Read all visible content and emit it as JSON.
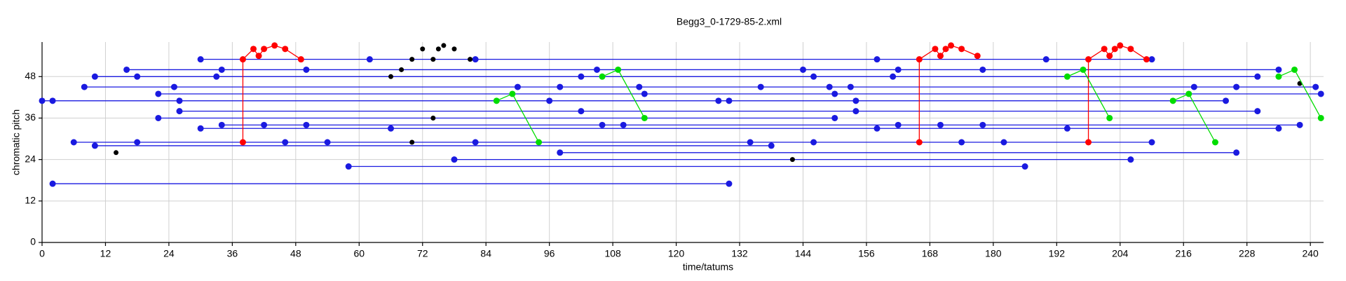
{
  "chart_data": {
    "type": "line",
    "title": "Begg3_0-1729-85-2.xml",
    "x_label": "time/tatums",
    "y_label": "chromatic pitch",
    "xlim": [
      0,
      242.5
    ],
    "ylim": [
      0,
      58
    ],
    "xticks": [
      0,
      12,
      24,
      36,
      48,
      60,
      72,
      84,
      96,
      108,
      120,
      132,
      144,
      156,
      168,
      180,
      192,
      204,
      216,
      228,
      240
    ],
    "yticks": [
      0,
      12,
      24,
      36,
      48
    ],
    "grid": true,
    "series": [
      {
        "color": "#1a1ae0",
        "x": [
          30,
          62,
          82,
          158,
          190,
          210
        ],
        "values": [
          53,
          53,
          53,
          53,
          53,
          53
        ]
      },
      {
        "color": "#1a1ae0",
        "x": [
          16,
          34,
          50,
          105,
          144,
          162,
          178,
          234
        ],
        "values": [
          50,
          50,
          50,
          50,
          50,
          50,
          50,
          50
        ]
      },
      {
        "color": "#1a1ae0",
        "x": [
          10,
          18,
          33,
          102,
          146,
          161,
          230
        ],
        "values": [
          48,
          48,
          48,
          48,
          48,
          48,
          48
        ]
      },
      {
        "color": "#1a1ae0",
        "x": [
          8,
          25,
          90,
          98,
          113,
          136,
          149,
          153,
          218,
          226,
          241
        ],
        "values": [
          45,
          45,
          45,
          45,
          45,
          45,
          45,
          45,
          45,
          45,
          45
        ]
      },
      {
        "color": "#1a1ae0",
        "x": [
          22,
          114,
          150,
          242
        ],
        "values": [
          43,
          43,
          43,
          43
        ]
      },
      {
        "color": "#1a1ae0",
        "x": [
          0,
          2,
          26,
          96,
          128,
          130,
          154,
          224
        ],
        "values": [
          41,
          41,
          41,
          41,
          41,
          41,
          41,
          41
        ]
      },
      {
        "color": "#1a1ae0",
        "x": [
          26,
          102,
          154,
          230
        ],
        "values": [
          38,
          38,
          38,
          38
        ]
      },
      {
        "color": "#1a1ae0",
        "x": [
          22,
          150
        ],
        "values": [
          36,
          36
        ]
      },
      {
        "color": "#1a1ae0",
        "x": [
          34,
          42,
          50,
          106,
          110,
          162,
          170,
          178,
          238
        ],
        "values": [
          34,
          34,
          34,
          34,
          34,
          34,
          34,
          34,
          34
        ]
      },
      {
        "color": "#1a1ae0",
        "x": [
          30,
          66,
          158,
          194,
          234
        ],
        "values": [
          33,
          33,
          33,
          33,
          33
        ]
      },
      {
        "color": "#1a1ae0",
        "x": [
          6,
          18,
          46,
          54,
          82,
          134,
          146,
          174,
          182,
          210
        ],
        "values": [
          29,
          29,
          29,
          29,
          29,
          29,
          29,
          29,
          29,
          29
        ]
      },
      {
        "color": "#1a1ae0",
        "x": [
          10,
          138
        ],
        "values": [
          28,
          28
        ]
      },
      {
        "color": "#1a1ae0",
        "x": [
          98,
          226
        ],
        "values": [
          26,
          26
        ]
      },
      {
        "color": "#1a1ae0",
        "x": [
          78,
          206
        ],
        "values": [
          24,
          24
        ]
      },
      {
        "color": "#1a1ae0",
        "x": [
          58,
          186
        ],
        "values": [
          22,
          22
        ]
      },
      {
        "color": "#1a1ae0",
        "x": [
          2,
          130
        ],
        "values": [
          17,
          17
        ]
      },
      {
        "color": "#ff0000",
        "x": [
          38,
          38,
          40,
          41,
          42,
          44,
          46,
          49
        ],
        "values": [
          29,
          53,
          56,
          54,
          56,
          57,
          56,
          53
        ]
      },
      {
        "color": "#ff0000",
        "x": [
          166,
          166,
          169,
          170,
          171,
          172,
          174,
          177
        ],
        "values": [
          29,
          53,
          56,
          54,
          56,
          57,
          56,
          54
        ]
      },
      {
        "color": "#ff0000",
        "x": [
          198,
          198,
          201,
          202,
          203,
          204,
          206,
          209
        ],
        "values": [
          29,
          53,
          56,
          54,
          56,
          57,
          56,
          53
        ]
      },
      {
        "color": "#000000",
        "line": false,
        "x": [
          66,
          68,
          70,
          72,
          74,
          75,
          76,
          78,
          81,
          14,
          70,
          74,
          142,
          238
        ],
        "values": [
          48,
          50,
          53,
          56,
          53,
          56,
          57,
          56,
          53,
          26,
          29,
          36,
          24,
          46
        ]
      },
      {
        "color": "#00dd00",
        "x": [
          86,
          89,
          94
        ],
        "values": [
          41,
          43,
          29
        ]
      },
      {
        "color": "#00dd00",
        "x": [
          106,
          109,
          114
        ],
        "values": [
          48,
          50,
          36
        ]
      },
      {
        "color": "#00dd00",
        "x": [
          194,
          197,
          202
        ],
        "values": [
          48,
          50,
          36
        ]
      },
      {
        "color": "#00dd00",
        "x": [
          214,
          217,
          222
        ],
        "values": [
          41,
          43,
          29
        ]
      },
      {
        "color": "#00dd00",
        "x": [
          234,
          237,
          242
        ],
        "values": [
          48,
          50,
          36
        ]
      }
    ]
  }
}
